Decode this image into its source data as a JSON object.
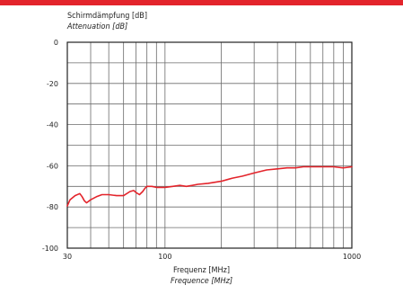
{
  "chart_data": {
    "type": "line",
    "ylabel": "Schirmdämpfung [dB]",
    "ylabel_en": "Attenuation [dB]",
    "xlabel": "Frequenz [MHz]",
    "xlabel_en": "Frequence [MHz]",
    "x_scale": "log",
    "xlim": [
      30,
      1000
    ],
    "ylim": [
      -100,
      0
    ],
    "x_tick_labels": [
      "30",
      "100",
      "1000"
    ],
    "y_tick_labels": [
      "0",
      "-20",
      "-40",
      "-60",
      "-80",
      "-100"
    ],
    "grid": true,
    "line_color": "#e3242b",
    "accent_color": "#e3242b",
    "series": [
      {
        "x": [
          30,
          31,
          33,
          35,
          36,
          37,
          38,
          40,
          43,
          46,
          50,
          55,
          60,
          65,
          68,
          70,
          73,
          76,
          78,
          80,
          85,
          90,
          100,
          110,
          120,
          130,
          140,
          150,
          170,
          200,
          230,
          260,
          300,
          350,
          400,
          450,
          500,
          550,
          600,
          650,
          700,
          800,
          900,
          1000
        ],
        "y": [
          -79.5,
          -76.5,
          -74.5,
          -73.5,
          -75,
          -77,
          -78,
          -76.5,
          -75,
          -74,
          -74,
          -74.5,
          -74.5,
          -72.5,
          -72,
          -73,
          -74,
          -72.5,
          -71,
          -70,
          -70,
          -70.5,
          -70.5,
          -70,
          -69.5,
          -70,
          -69.5,
          -69,
          -68.5,
          -67.5,
          -66,
          -65,
          -63.5,
          -62,
          -61.5,
          -61,
          -61,
          -60.5,
          -60.5,
          -60.5,
          -60.5,
          -60.5,
          -61,
          -60.5
        ]
      }
    ]
  }
}
